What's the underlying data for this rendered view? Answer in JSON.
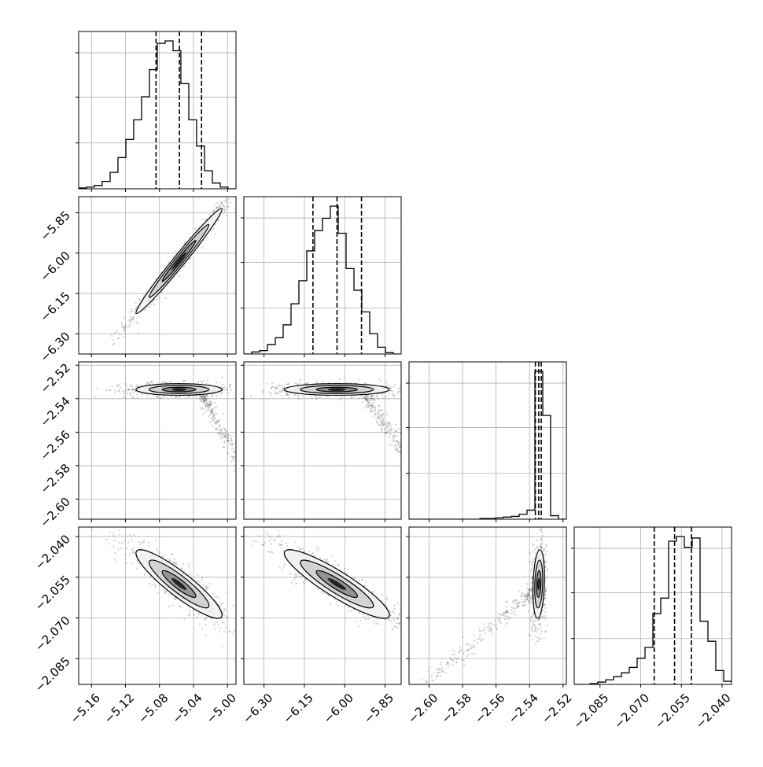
{
  "figure": {
    "type": "corner",
    "n_params": 4,
    "params": [
      {
        "ticks": [
          "−5.16",
          "−5.12",
          "−5.08",
          "−5.04",
          "−5.00"
        ],
        "tick_values": [
          -5.16,
          -5.12,
          -5.08,
          -5.04,
          -5.0
        ],
        "range": [
          -5.175,
          -4.99
        ]
      },
      {
        "ticks": [
          "−6.30",
          "−6.15",
          "−6.00",
          "−5.85"
        ],
        "tick_values": [
          -6.3,
          -6.15,
          -6.0,
          -5.85
        ],
        "range": [
          -6.375,
          -5.79
        ]
      },
      {
        "ticks": [
          "−2.60",
          "−2.58",
          "−2.56",
          "−2.54",
          "−2.52"
        ],
        "tick_values": [
          -2.6,
          -2.58,
          -2.56,
          -2.54,
          -2.52
        ],
        "range": [
          -2.612,
          -2.518
        ]
      },
      {
        "ticks": [
          "−2.085",
          "−2.070",
          "−2.055",
          "−2.040"
        ],
        "tick_values": [
          -2.085,
          -2.07,
          -2.055,
          -2.04
        ],
        "range": [
          -2.0945,
          -2.0365
        ]
      }
    ]
  },
  "chart_data": {
    "type": "corner",
    "grid": true,
    "quantile_lines": "dashed",
    "histograms": [
      {
        "param": 0,
        "bin_edges": [
          -5.175,
          -5.1658,
          -5.1565,
          -5.1473,
          -5.138,
          -5.1288,
          -5.1195,
          -5.1103,
          -5.101,
          -5.0918,
          -5.0825,
          -5.0733,
          -5.064,
          -5.0548,
          -5.0455,
          -5.0363,
          -5.027,
          -5.0178,
          -5.0085,
          -4.9993,
          -4.99
        ],
        "counts": [
          1,
          2,
          4,
          9,
          20,
          38,
          60,
          84,
          112,
          145,
          177,
          180,
          168,
          128,
          84,
          52,
          22,
          7,
          2,
          0
        ],
        "quantiles": [
          -5.084,
          -5.0565,
          -5.0305
        ]
      },
      {
        "param": 1,
        "bin_edges": [
          -6.375,
          -6.3458,
          -6.3165,
          -6.2873,
          -6.258,
          -6.2288,
          -6.1995,
          -6.1703,
          -6.141,
          -6.1118,
          -6.0825,
          -6.0533,
          -6.024,
          -5.9948,
          -5.9655,
          -5.9363,
          -5.907,
          -5.8778,
          -5.8485,
          -5.8193,
          -5.79
        ],
        "counts": [
          0,
          3,
          5,
          14,
          24,
          43,
          74,
          108,
          152,
          182,
          200,
          218,
          178,
          126,
          94,
          62,
          30,
          10,
          2,
          0
        ],
        "quantiles": [
          -6.118,
          -6.0285,
          -5.9375
        ]
      },
      {
        "param": 2,
        "bin_edges": [
          -2.612,
          -2.6073,
          -2.6026,
          -2.5979,
          -2.5932,
          -2.5885,
          -2.5838,
          -2.5791,
          -2.5744,
          -2.5697,
          -2.565,
          -2.5603,
          -2.5556,
          -2.5509,
          -2.5462,
          -2.5415,
          -2.5368,
          -2.5321,
          -2.5274,
          -2.5227,
          -2.518
        ],
        "counts": [
          0,
          0,
          0,
          0,
          0,
          0,
          0,
          0,
          0,
          1,
          1,
          2,
          3,
          4,
          7,
          13,
          211,
          148,
          5,
          0
        ],
        "quantiles": [
          -2.5365,
          -2.5345,
          -2.533
        ]
      },
      {
        "param": 3,
        "bin_edges": [
          -2.0945,
          -2.0916,
          -2.0887,
          -2.0858,
          -2.0829,
          -2.08,
          -2.0771,
          -2.0742,
          -2.0713,
          -2.0684,
          -2.0655,
          -2.0626,
          -2.0597,
          -2.0568,
          -2.0539,
          -2.051,
          -2.0481,
          -2.0452,
          -2.0423,
          -2.0394,
          -2.0365
        ],
        "counts": [
          0,
          0,
          1,
          3,
          6,
          10,
          15,
          22,
          34,
          48,
          92,
          112,
          186,
          192,
          178,
          190,
          82,
          56,
          18,
          4
        ],
        "quantiles": [
          -2.065,
          -2.0575,
          -2.0513
        ]
      }
    ],
    "pairs": [
      {
        "x": 0,
        "y": 1,
        "mean": [
          -5.057,
          -6.029
        ],
        "sd": [
          0.022,
          0.085
        ],
        "rho": 0.985,
        "tail": false
      },
      {
        "x": 0,
        "y": 2,
        "mean": [
          -5.057,
          -2.5345
        ],
        "sd": [
          0.022,
          0.0015
        ],
        "rho": 0.0,
        "tail": true,
        "tail_dir": "positive"
      },
      {
        "x": 1,
        "y": 2,
        "mean": [
          -6.029,
          -2.5345
        ],
        "sd": [
          0.085,
          0.0015
        ],
        "rho": 0.0,
        "tail": true,
        "tail_dir": "positive"
      },
      {
        "x": 0,
        "y": 3,
        "mean": [
          -5.057,
          -2.0575
        ],
        "sd": [
          0.022,
          0.0055
        ],
        "rho": -0.9,
        "tail": false
      },
      {
        "x": 1,
        "y": 3,
        "mean": [
          -6.029,
          -2.0575
        ],
        "sd": [
          0.085,
          0.0055
        ],
        "rho": -0.9,
        "tail": false
      },
      {
        "x": 2,
        "y": 3,
        "mean": [
          -2.5345,
          -2.0575
        ],
        "sd": [
          0.0015,
          0.0055
        ],
        "rho": 0.2,
        "tail": true,
        "tail_dir": "negative"
      }
    ]
  }
}
